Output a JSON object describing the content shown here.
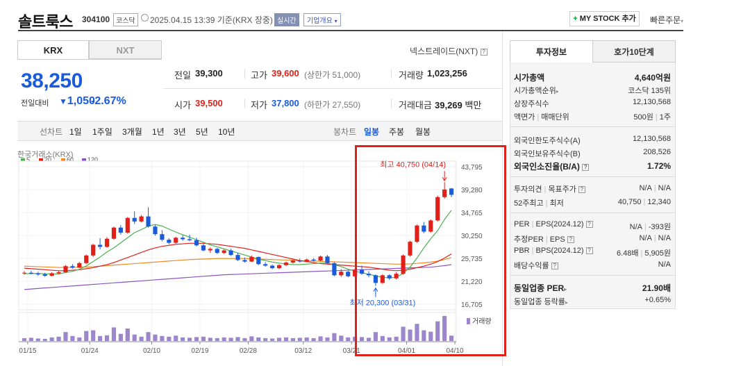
{
  "header": {
    "title": "솔트룩스",
    "code": "304100",
    "market": "코스닥",
    "datetime": "2025.04.15 13:39",
    "basis": "기준(KRX 장중)",
    "realtime": "실시간",
    "company_info": "기업개요",
    "mystock_plus": "+",
    "mystock": "MY STOCK 추가",
    "quick_order": "빠른주문"
  },
  "market_tabs": [
    "KRX",
    "NXT"
  ],
  "nxt_link": "넥스트레이드(NXT)",
  "price": {
    "current": "38,250",
    "compare_label": "전일대비",
    "change": "1,050",
    "change_pct": "-2.67%"
  },
  "stats": {
    "prev_close_label": "전일",
    "prev_close": "39,300",
    "high_label": "고가",
    "high": "39,600",
    "high_limit": "(상한가 51,000)",
    "volume_label": "거래량",
    "volume": "1,023,256",
    "open_label": "시가",
    "open": "39,500",
    "low_label": "저가",
    "low": "37,800",
    "low_limit": "(하한가 27,550)",
    "amount_label": "거래대금",
    "amount": "39,269",
    "amount_unit": "백만"
  },
  "periods": [
    "선차트",
    "1일",
    "1주일",
    "3개월",
    "1년",
    "3년",
    "5년",
    "10년"
  ],
  "candle_periods": [
    "봉차트",
    "일봉",
    "주봉",
    "월봉"
  ],
  "colors": {
    "up": "#e0201b",
    "down": "#1a5bdc",
    "ma5": "#4caf50",
    "ma20": "#e0201b",
    "ma60": "#f08a24",
    "ma120": "#8a55c0",
    "volume": "#9b87c9",
    "highlight": "#e0201b"
  },
  "chart_data": {
    "type": "candlestick",
    "source": "한국거래소(KRX)",
    "legend": [
      {
        "name": "5",
        "color": "#4caf50"
      },
      {
        "name": "20",
        "color": "#e0201b"
      },
      {
        "name": "60",
        "color": "#f08a24"
      },
      {
        "name": "120",
        "color": "#8a55c0"
      }
    ],
    "y_ticks": [
      "43,795",
      "39,280",
      "34,765",
      "30,250",
      "25,735",
      "21,220",
      "16,705"
    ],
    "ylim": [
      16705,
      43795
    ],
    "x_ticks": [
      "01/15",
      "01/24",
      "02/10",
      "02/19",
      "02/28",
      "03/12",
      "03/21",
      "04/01",
      "04/10"
    ],
    "volume_label": "거래량",
    "high_annotation": "최고 40,750 (04/14)",
    "low_annotation": "최저 20,300 (03/31)",
    "candles": [
      [
        22800,
        23200,
        22500,
        22900
      ],
      [
        22900,
        23300,
        22600,
        22700
      ],
      [
        22700,
        23100,
        22300,
        22600
      ],
      [
        22600,
        22900,
        22100,
        22300
      ],
      [
        22300,
        23000,
        22200,
        22800
      ],
      [
        22800,
        23200,
        22600,
        23000
      ],
      [
        23000,
        24400,
        22900,
        24200
      ],
      [
        24200,
        24600,
        23700,
        23900
      ],
      [
        23900,
        25000,
        23800,
        24800
      ],
      [
        24800,
        26500,
        24600,
        26300
      ],
      [
        26300,
        28600,
        26000,
        28400
      ],
      [
        28400,
        29700,
        27500,
        28000
      ],
      [
        28000,
        29900,
        27800,
        29600
      ],
      [
        29600,
        32000,
        29400,
        31800
      ],
      [
        31800,
        32300,
        30400,
        30800
      ],
      [
        30800,
        33900,
        30600,
        33700
      ],
      [
        33700,
        35000,
        32500,
        33000
      ],
      [
        33000,
        34300,
        32800,
        34000
      ],
      [
        34000,
        35800,
        31800,
        32000
      ],
      [
        32000,
        32300,
        30200,
        30500
      ],
      [
        30500,
        31300,
        29100,
        29400
      ],
      [
        29400,
        29700,
        28500,
        28800
      ],
      [
        28800,
        30000,
        28600,
        29800
      ],
      [
        29800,
        30300,
        29200,
        29500
      ],
      [
        29500,
        30400,
        29100,
        29300
      ],
      [
        29300,
        29800,
        28100,
        28300
      ],
      [
        28300,
        28600,
        27100,
        27300
      ],
      [
        27300,
        27900,
        26800,
        27600
      ],
      [
        27600,
        27800,
        26600,
        26800
      ],
      [
        26800,
        27500,
        26600,
        27300
      ],
      [
        27300,
        27600,
        26200,
        26400
      ],
      [
        26400,
        26800,
        25200,
        25400
      ],
      [
        25400,
        25900,
        24900,
        25100
      ],
      [
        25100,
        26300,
        25000,
        26000
      ],
      [
        26000,
        26100,
        24400,
        24600
      ],
      [
        24600,
        25000,
        24100,
        24300
      ],
      [
        24300,
        24500,
        23600,
        23800
      ],
      [
        23800,
        24600,
        23600,
        24400
      ],
      [
        24400,
        25100,
        24200,
        24900
      ],
      [
        24900,
        25500,
        24700,
        25300
      ],
      [
        25300,
        25700,
        24900,
        25100
      ],
      [
        25100,
        25700,
        24900,
        25500
      ],
      [
        25500,
        25800,
        25100,
        25300
      ],
      [
        25300,
        26300,
        25100,
        26100
      ],
      [
        26100,
        26400,
        24600,
        24800
      ],
      [
        24800,
        25000,
        22200,
        22400
      ],
      [
        22400,
        23600,
        22100,
        23100
      ],
      [
        23100,
        23300,
        22000,
        22200
      ],
      [
        22200,
        23700,
        22000,
        23500
      ],
      [
        23500,
        24300,
        22500,
        22700
      ],
      [
        22700,
        23200,
        22000,
        22400
      ],
      [
        22400,
        22600,
        20300,
        20900
      ],
      [
        20900,
        22600,
        20700,
        22400
      ],
      [
        22400,
        22600,
        21500,
        21800
      ],
      [
        21800,
        23000,
        21600,
        22700
      ],
      [
        22700,
        26500,
        22500,
        26300
      ],
      [
        26300,
        29200,
        26100,
        29000
      ],
      [
        29000,
        32400,
        28800,
        32200
      ],
      [
        32200,
        32900,
        30700,
        31000
      ],
      [
        31000,
        33400,
        30800,
        33200
      ],
      [
        33200,
        38100,
        33000,
        37800
      ],
      [
        37800,
        40750,
        37500,
        39300
      ],
      [
        39500,
        39600,
        37800,
        38250
      ]
    ],
    "volume": [
      8,
      9,
      7,
      6,
      10,
      12,
      25,
      14,
      10,
      28,
      30,
      14,
      16,
      38,
      20,
      35,
      18,
      12,
      25,
      18,
      14,
      12,
      15,
      10,
      9,
      11,
      12,
      9,
      8,
      10,
      9,
      11,
      8,
      13,
      10,
      8,
      7,
      9,
      10,
      8,
      9,
      10,
      8,
      13,
      10,
      22,
      15,
      10,
      12,
      11,
      9,
      25,
      14,
      10,
      12,
      40,
      32,
      48,
      30,
      26,
      55,
      70,
      15
    ],
    "ma5": [
      22700,
      22750,
      22780,
      22700,
      22660,
      22660,
      22940,
      23180,
      23580,
      24240,
      25120,
      26000,
      27000,
      27800,
      28800,
      29800,
      30800,
      31400,
      32100,
      32400,
      32100,
      31500,
      30900,
      30400,
      29900,
      29400,
      28900,
      28400,
      28000,
      27600,
      27200,
      26800,
      26400,
      26000,
      25600,
      25300,
      25000,
      24800,
      24600,
      24500,
      24500,
      24600,
      24700,
      24800,
      24800,
      24500,
      24100,
      23600,
      23200,
      22900,
      22600,
      22300,
      22000,
      21900,
      22000,
      22800,
      24000,
      25800,
      27800,
      29600,
      31200,
      33400,
      35200
    ],
    "ma20": [
      23800,
      23700,
      23600,
      23500,
      23400,
      23300,
      23300,
      23400,
      23500,
      23700,
      23900,
      24200,
      24500,
      24900,
      25400,
      25900,
      26400,
      26900,
      27400,
      27800,
      28100,
      28300,
      28500,
      28600,
      28700,
      28700,
      28700,
      28600,
      28500,
      28300,
      28100,
      27900,
      27700,
      27400,
      27100,
      26800,
      26500,
      26200,
      25900,
      25600,
      25300,
      25100,
      24900,
      24700,
      24600,
      24500,
      24400,
      24300,
      24200,
      24100,
      24000,
      23800,
      23600,
      23400,
      23300,
      23400,
      23600,
      23900,
      24200,
      24600,
      25100,
      25800,
      26600
    ],
    "ma60": [
      24200,
      24150,
      24100,
      24050,
      24000,
      23950,
      23950,
      23950,
      24000,
      24050,
      24100,
      24200,
      24300,
      24400,
      24500,
      24600,
      24700,
      24800,
      24900,
      25000,
      25100,
      25200,
      25300,
      25400,
      25500,
      25550,
      25600,
      25650,
      25700,
      25700,
      25700,
      25700,
      25700,
      25650,
      25600,
      25550,
      25500,
      25450,
      25400,
      25350,
      25300,
      25250,
      25200,
      25150,
      25100,
      25050,
      25000,
      24950,
      24900,
      24850,
      24800,
      24750,
      24700,
      24650,
      24600,
      24600,
      24650,
      24750,
      24850,
      25000,
      25200,
      25500,
      25900
    ],
    "ma120": [
      19600,
      19700,
      19800,
      19900,
      20000,
      20100,
      20200,
      20300,
      20400,
      20500,
      20600,
      20700,
      20800,
      20900,
      21000,
      21100,
      21200,
      21300,
      21400,
      21500,
      21600,
      21700,
      21800,
      21900,
      22000,
      22100,
      22200,
      22300,
      22400,
      22500,
      22550,
      22600,
      22650,
      22700,
      22750,
      22800,
      22850,
      22900,
      22950,
      23000,
      23050,
      23100,
      23150,
      23200,
      23250,
      23300,
      23350,
      23400,
      23450,
      23500,
      23550,
      23600,
      23650,
      23700,
      23750,
      23800,
      23850,
      23900,
      23950,
      24000,
      24150,
      24300,
      24500
    ]
  },
  "right_panel": {
    "tabs": [
      "투자정보",
      "호가10단계"
    ],
    "market_cap_label": "시가총액",
    "market_cap": "4,640억원",
    "rank_label": "시가총액순위",
    "rank": "코스닥 135위",
    "shares_label": "상장주식수",
    "shares": "12,130,568",
    "par_label": "액면가",
    "lot_label": "매매단위",
    "par": "500원",
    "lot": "1주",
    "foreign_limit_label": "외국인한도주식수(A)",
    "foreign_limit": "12,130,568",
    "foreign_hold_label": "외국인보유주식수(B)",
    "foreign_hold": "208,526",
    "foreign_ratio_label": "외국인소진율(B/A)",
    "foreign_ratio": "1.72%",
    "opinion_label": "투자의견",
    "target_label": "목표주가",
    "opinion": "N/A",
    "target": "N/A",
    "w52_label": "52주최고",
    "w52_low_label": "최저",
    "w52_high": "40,750",
    "w52_low": "12,340",
    "per_label": "PER",
    "eps_label": "EPS(2024.12)",
    "per": "N/A",
    "eps": "-393원",
    "est_per_label": "추정PER",
    "est_eps_label": "EPS",
    "est_per": "N/A",
    "est_eps": "N/A",
    "pbr_label": "PBR",
    "bps_label": "BPS(2024.12)",
    "pbr": "6.48배",
    "bps": "5,905원",
    "div_label": "배당수익률",
    "div": "N/A",
    "ind_per_label": "동일업종 PER",
    "ind_per": "21.90배",
    "ind_chg_label": "동일업종 등락률",
    "ind_chg": "+0.65%"
  }
}
